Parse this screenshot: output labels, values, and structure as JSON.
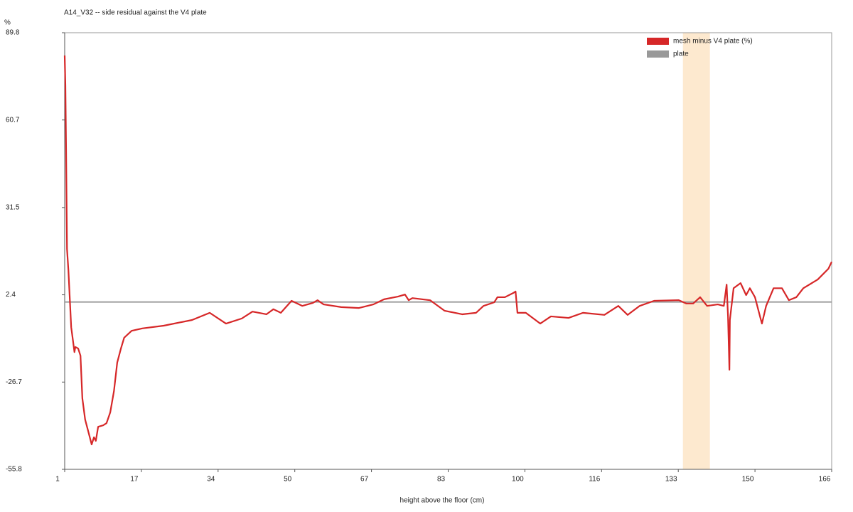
{
  "chart_data": {
    "type": "line",
    "title": "A14_V32 -- side residual against the V4 plate",
    "y_label": "%",
    "x_label": "height above the floor (cm)",
    "xlim": [
      1,
      166
    ],
    "ylim": [
      -55.8,
      89.8
    ],
    "xticks": [
      1,
      {
        "value": 17.5,
        "label": "17"
      },
      34,
      {
        "value": 50.5,
        "label": "50"
      },
      67,
      {
        "value": 83.5,
        "label": "83"
      },
      100,
      {
        "value": 116.5,
        "label": "116"
      },
      133,
      {
        "value": 149.5,
        "label": "150"
      },
      166
    ],
    "yticks": [
      -55.8,
      -26.7,
      2.4,
      31.5,
      60.7,
      89.8
    ],
    "shaded_span": {
      "x": [
        134,
        139.8
      ],
      "color": "#fde9cf"
    },
    "legend": "upper right",
    "series": [
      {
        "name": "mesh minus V4 plate (%)",
        "color": "#d62728",
        "x": [
          1,
          1.15,
          1.3,
          1.5,
          1.8,
          2.1,
          2.4,
          2.8,
          3.1,
          3.3,
          3.9,
          4.4,
          4.8,
          5.4,
          6.2,
          6.8,
          7.3,
          7.7,
          8.2,
          9.3,
          10.0,
          10.8,
          11.6,
          12.3,
          13.1,
          13.8,
          15.4,
          17.7,
          22.3,
          28.4,
          32.2,
          35.7,
          39.1,
          41.4,
          44.4,
          45.9,
          47.5,
          49.8,
          52.1,
          54.4,
          55.4,
          56.7,
          60.5,
          64.3,
          67.4,
          69.7,
          72.7,
          74.2,
          75.0,
          75.8,
          79.6,
          82.7,
          86.5,
          89.5,
          91.1,
          93.4,
          94.1,
          95.7,
          97.5,
          98.0,
          98.4,
          100.2,
          103.3,
          105.6,
          109.4,
          112.5,
          117.1,
          120.1,
          122.1,
          124.7,
          127.8,
          133.1,
          134.7,
          136.2,
          137.7,
          139.2,
          141.5,
          142.8,
          143.4,
          143.7,
          144.0,
          144.1,
          144.9,
          146.4,
          147.6,
          148.4,
          149.5,
          150.7,
          151.0,
          151.9,
          153.5,
          155.3,
          156.8,
          158.4,
          159.9,
          163.0,
          165.3,
          166.0
        ],
        "values": [
          82.2,
          72.3,
          50.9,
          17.7,
          10.6,
          1.1,
          -8.4,
          -13.1,
          -16.7,
          -15.0,
          -15.5,
          -17.9,
          -32.1,
          -39.2,
          -43.9,
          -47.5,
          -45.1,
          -46.3,
          -41.6,
          -41.1,
          -40.4,
          -36.8,
          -29.7,
          -20.2,
          -15.5,
          -11.9,
          -9.6,
          -8.8,
          -7.9,
          -6.0,
          -3.6,
          -7.2,
          -5.5,
          -3.2,
          -4.1,
          -2.4,
          -3.6,
          0.4,
          -1.3,
          -0.3,
          0.6,
          -0.8,
          -1.7,
          -2.0,
          -0.8,
          0.9,
          1.8,
          2.5,
          0.6,
          1.3,
          0.6,
          -2.9,
          -4.1,
          -3.6,
          -1.3,
          -0.1,
          1.6,
          1.6,
          3.0,
          3.5,
          -3.6,
          -3.6,
          -7.2,
          -4.8,
          -5.3,
          -3.6,
          -4.3,
          -1.3,
          -4.3,
          -1.3,
          0.4,
          0.6,
          -0.5,
          -0.5,
          1.6,
          -1.3,
          -0.8,
          -1.3,
          5.8,
          -4.8,
          -22.6,
          -6.0,
          4.6,
          6.3,
          2.3,
          4.6,
          1.6,
          -5.5,
          -7.2,
          -1.3,
          4.6,
          4.6,
          0.6,
          1.6,
          4.6,
          7.5,
          11.1,
          13.4
        ]
      },
      {
        "name": "plate",
        "color": "#999999",
        "x": [
          1,
          166
        ],
        "values": [
          0,
          0
        ]
      }
    ]
  }
}
